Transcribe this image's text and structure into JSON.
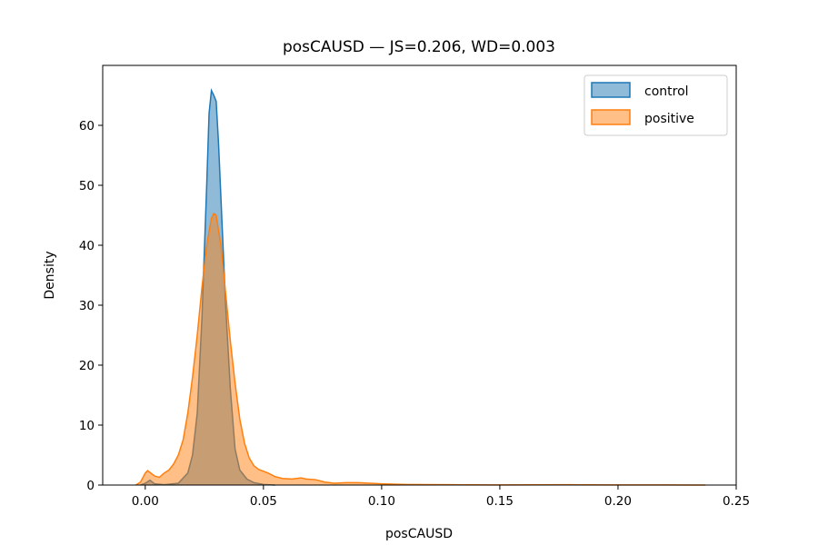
{
  "chart_data": {
    "type": "area",
    "title": "posCAUSD — JS=0.206, WD=0.003",
    "xlabel": "posCAUSD",
    "ylabel": "Density",
    "xlim": [
      -0.018,
      0.25
    ],
    "ylim": [
      0,
      70
    ],
    "x_ticks": [
      0.0,
      0.05,
      0.1,
      0.15,
      0.2,
      0.25
    ],
    "x_tick_labels": [
      "0.00",
      "0.05",
      "0.10",
      "0.15",
      "0.20",
      "0.25"
    ],
    "y_ticks": [
      0,
      10,
      20,
      30,
      40,
      50,
      60
    ],
    "y_tick_labels": [
      "0",
      "10",
      "20",
      "30",
      "40",
      "50",
      "60"
    ],
    "grid": false,
    "legend_position": "top-right",
    "series": [
      {
        "name": "control",
        "fill_color": "#1f77b4",
        "line_color": "#1f77b4",
        "points": [
          [
            -0.002,
            0
          ],
          [
            0.0,
            0.3
          ],
          [
            0.002,
            0.8
          ],
          [
            0.004,
            0.2
          ],
          [
            0.008,
            0.05
          ],
          [
            0.014,
            0.3
          ],
          [
            0.018,
            2
          ],
          [
            0.02,
            5
          ],
          [
            0.022,
            12
          ],
          [
            0.024,
            28
          ],
          [
            0.026,
            50
          ],
          [
            0.027,
            62
          ],
          [
            0.028,
            65.8
          ],
          [
            0.029,
            65
          ],
          [
            0.03,
            64
          ],
          [
            0.031,
            57
          ],
          [
            0.032,
            48
          ],
          [
            0.034,
            30
          ],
          [
            0.036,
            16
          ],
          [
            0.038,
            6
          ],
          [
            0.04,
            2.5
          ],
          [
            0.043,
            1
          ],
          [
            0.046,
            0.4
          ],
          [
            0.05,
            0.1
          ],
          [
            0.055,
            0
          ]
        ]
      },
      {
        "name": "positive",
        "fill_color": "#ff7f0e",
        "line_color": "#ff7f0e",
        "points": [
          [
            -0.004,
            0
          ],
          [
            -0.002,
            0.5
          ],
          [
            0.0,
            2
          ],
          [
            0.001,
            2.4
          ],
          [
            0.002,
            2.1
          ],
          [
            0.004,
            1.5
          ],
          [
            0.006,
            1.3
          ],
          [
            0.008,
            2
          ],
          [
            0.01,
            2.5
          ],
          [
            0.012,
            3.5
          ],
          [
            0.014,
            5
          ],
          [
            0.016,
            7.5
          ],
          [
            0.018,
            12
          ],
          [
            0.02,
            18
          ],
          [
            0.022,
            25
          ],
          [
            0.024,
            33
          ],
          [
            0.026,
            40
          ],
          [
            0.028,
            44.5
          ],
          [
            0.029,
            45.3
          ],
          [
            0.03,
            45
          ],
          [
            0.032,
            40
          ],
          [
            0.034,
            32
          ],
          [
            0.036,
            24
          ],
          [
            0.038,
            17
          ],
          [
            0.04,
            11
          ],
          [
            0.042,
            7
          ],
          [
            0.044,
            4.5
          ],
          [
            0.046,
            3.2
          ],
          [
            0.048,
            2.6
          ],
          [
            0.05,
            2.3
          ],
          [
            0.052,
            2
          ],
          [
            0.055,
            1.4
          ],
          [
            0.058,
            1.1
          ],
          [
            0.062,
            1.0
          ],
          [
            0.066,
            1.2
          ],
          [
            0.068,
            1.0
          ],
          [
            0.072,
            0.9
          ],
          [
            0.076,
            0.5
          ],
          [
            0.08,
            0.3
          ],
          [
            0.085,
            0.4
          ],
          [
            0.09,
            0.4
          ],
          [
            0.095,
            0.3
          ],
          [
            0.1,
            0.2
          ],
          [
            0.11,
            0.1
          ],
          [
            0.13,
            0.05
          ],
          [
            0.15,
            0.02
          ],
          [
            0.18,
            0.05
          ],
          [
            0.2,
            0.02
          ],
          [
            0.22,
            0.01
          ],
          [
            0.237,
            0
          ]
        ]
      }
    ]
  }
}
